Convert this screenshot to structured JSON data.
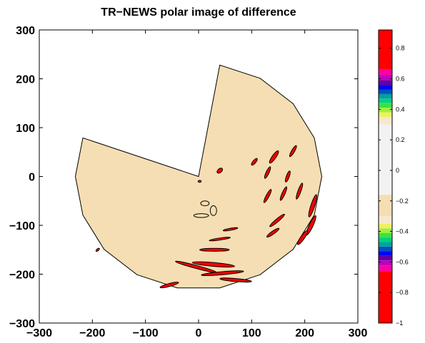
{
  "chart_data": {
    "type": "contour",
    "title": "TR−NEWS polar image of difference",
    "xlim": [
      -300,
      300
    ],
    "ylim": [
      -300,
      300
    ],
    "x_ticks": [
      "−300",
      "−200",
      "−100",
      "0",
      "100",
      "200",
      "300"
    ],
    "y_ticks": [
      "300",
      "200",
      "100",
      "0",
      "−100",
      "−200",
      "−300"
    ],
    "x_tick_values": [
      -300,
      -200,
      -100,
      0,
      100,
      200,
      300
    ],
    "y_tick_values": [
      300,
      200,
      100,
      0,
      -100,
      -200,
      -300
    ],
    "domain_outline": [
      [
        0,
        0
      ],
      [
        -218,
        79
      ],
      [
        -232,
        0
      ],
      [
        -218,
        -79
      ],
      [
        -178,
        -149
      ],
      [
        -116,
        -201
      ],
      [
        -40,
        -228
      ],
      [
        40,
        -228
      ],
      [
        116,
        -201
      ],
      [
        178,
        -149
      ],
      [
        218,
        -79
      ],
      [
        232,
        0
      ],
      [
        218,
        79
      ],
      [
        178,
        149
      ],
      [
        116,
        201
      ],
      [
        40,
        228
      ],
      [
        0,
        0
      ]
    ],
    "fill_value_color": "#f5deb3",
    "colorbar": {
      "range": [
        -1,
        1
      ],
      "tick_values": [
        0.8,
        0.6,
        0.4,
        0.2,
        0,
        -0.2,
        -0.4,
        -0.6,
        -0.8,
        -1
      ],
      "tick_labels": [
        "0.8",
        "0.6",
        "0.4",
        "0.2",
        "0",
        "−0.2",
        "−0.4",
        "−0.6",
        "−0.8",
        "−1"
      ],
      "stops": [
        {
          "from": 0.92,
          "to": 0.66,
          "color": "#ff0000"
        },
        {
          "from": 0.66,
          "to": 0.625,
          "color": "#ff00a0"
        },
        {
          "from": 0.625,
          "to": 0.59,
          "color": "#c000c0"
        },
        {
          "from": 0.59,
          "to": 0.56,
          "color": "#6000a0"
        },
        {
          "from": 0.56,
          "to": 0.53,
          "color": "#0000ff"
        },
        {
          "from": 0.53,
          "to": 0.5,
          "color": "#0050c0"
        },
        {
          "from": 0.5,
          "to": 0.47,
          "color": "#00a0a0"
        },
        {
          "from": 0.47,
          "to": 0.44,
          "color": "#00d080"
        },
        {
          "from": 0.44,
          "to": 0.41,
          "color": "#40e040"
        },
        {
          "from": 0.41,
          "to": 0.38,
          "color": "#a0f040"
        },
        {
          "from": 0.38,
          "to": 0.35,
          "color": "#f0f060"
        },
        {
          "from": 0.35,
          "to": 0.3,
          "color": "#f5e8d0"
        },
        {
          "from": 0.3,
          "to": -0.16,
          "color": "#f2f2f2"
        },
        {
          "from": -0.16,
          "to": -0.3,
          "color": "#f5deb3"
        },
        {
          "from": -0.3,
          "to": -0.35,
          "color": "#f5e8d0"
        },
        {
          "from": -0.35,
          "to": -0.38,
          "color": "#f0f060"
        },
        {
          "from": -0.38,
          "to": -0.41,
          "color": "#a0f040"
        },
        {
          "from": -0.41,
          "to": -0.44,
          "color": "#40e040"
        },
        {
          "from": -0.44,
          "to": -0.47,
          "color": "#00d080"
        },
        {
          "from": -0.47,
          "to": -0.5,
          "color": "#00a0a0"
        },
        {
          "from": -0.5,
          "to": -0.53,
          "color": "#0050c0"
        },
        {
          "from": -0.53,
          "to": -0.56,
          "color": "#0000ff"
        },
        {
          "from": -0.56,
          "to": -0.59,
          "color": "#6000a0"
        },
        {
          "from": -0.59,
          "to": -0.625,
          "color": "#c000c0"
        },
        {
          "from": -0.625,
          "to": -0.66,
          "color": "#ff00a0"
        },
        {
          "from": -0.66,
          "to": -1.0,
          "color": "#ff0000"
        }
      ]
    },
    "contour_regions": [
      {
        "cx": 142,
        "cy": 40,
        "rx": 14,
        "ry": 4,
        "angle": -55,
        "level": 0.7
      },
      {
        "cx": 178,
        "cy": 52,
        "rx": 12,
        "ry": 3,
        "angle": -60,
        "level": 0.7
      },
      {
        "cx": 105,
        "cy": 30,
        "rx": 8,
        "ry": 3,
        "angle": -50,
        "level": 0.7
      },
      {
        "cx": 40,
        "cy": 12,
        "rx": 6,
        "ry": 4,
        "angle": -40,
        "level": -0.7
      },
      {
        "cx": 130,
        "cy": 8,
        "rx": 12,
        "ry": 3,
        "angle": -65,
        "level": 0.7
      },
      {
        "cx": 168,
        "cy": 0,
        "rx": 11,
        "ry": 3,
        "angle": -70,
        "level": 0.7
      },
      {
        "cx": 130,
        "cy": -40,
        "rx": 14,
        "ry": 3,
        "angle": -62,
        "level": -0.7
      },
      {
        "cx": 160,
        "cy": -35,
        "rx": 14,
        "ry": 3,
        "angle": -66,
        "level": 0.7
      },
      {
        "cx": 190,
        "cy": -30,
        "rx": 16,
        "ry": 3,
        "angle": -70,
        "level": -0.7
      },
      {
        "cx": 215,
        "cy": -60,
        "rx": 22,
        "ry": 4,
        "angle": -72,
        "level": 0.7
      },
      {
        "cx": 212,
        "cy": -100,
        "rx": 20,
        "ry": 4,
        "angle": -65,
        "level": 0.7
      },
      {
        "cx": 196,
        "cy": -125,
        "rx": 16,
        "ry": 4,
        "angle": -55,
        "level": 0.7
      },
      {
        "cx": 148,
        "cy": -90,
        "rx": 18,
        "ry": 3,
        "angle": -40,
        "level": -0.7
      },
      {
        "cx": 140,
        "cy": -115,
        "rx": 14,
        "ry": 3,
        "angle": -35,
        "level": 0.7
      },
      {
        "cx": 60,
        "cy": -108,
        "rx": 14,
        "ry": 2,
        "angle": -10,
        "level": -0.7
      },
      {
        "cx": 40,
        "cy": -128,
        "rx": 20,
        "ry": 2,
        "angle": -8,
        "level": -0.7
      },
      {
        "cx": 30,
        "cy": -150,
        "rx": 28,
        "ry": 3,
        "angle": 0,
        "level": 0.7
      },
      {
        "cx": 28,
        "cy": -180,
        "rx": 40,
        "ry": 4,
        "angle": 5,
        "level": 0.7
      },
      {
        "cx": -5,
        "cy": -185,
        "rx": 40,
        "ry": 3,
        "angle": 15,
        "level": -0.7
      },
      {
        "cx": 45,
        "cy": -198,
        "rx": 40,
        "ry": 3,
        "angle": -5,
        "level": 0.7
      },
      {
        "cx": 70,
        "cy": -212,
        "rx": 30,
        "ry": 3,
        "angle": 5,
        "level": 0.7
      },
      {
        "cx": -55,
        "cy": -222,
        "rx": 18,
        "ry": 3,
        "angle": -15,
        "level": 0.7
      },
      {
        "cx": 5,
        "cy": -80,
        "rx": 14,
        "ry": 4,
        "angle": 0,
        "level": -0.2
      },
      {
        "cx": 12,
        "cy": -55,
        "rx": 8,
        "ry": 5,
        "angle": 0,
        "level": -0.2
      },
      {
        "cx": 28,
        "cy": -70,
        "rx": 6,
        "ry": 10,
        "angle": 0,
        "level": -0.2
      },
      {
        "cx": -190,
        "cy": -150,
        "rx": 4,
        "ry": 2,
        "angle": -40,
        "level": 0.7
      },
      {
        "cx": 2,
        "cy": -10,
        "rx": 3,
        "ry": 2,
        "angle": 0,
        "level": 0.7
      }
    ]
  }
}
